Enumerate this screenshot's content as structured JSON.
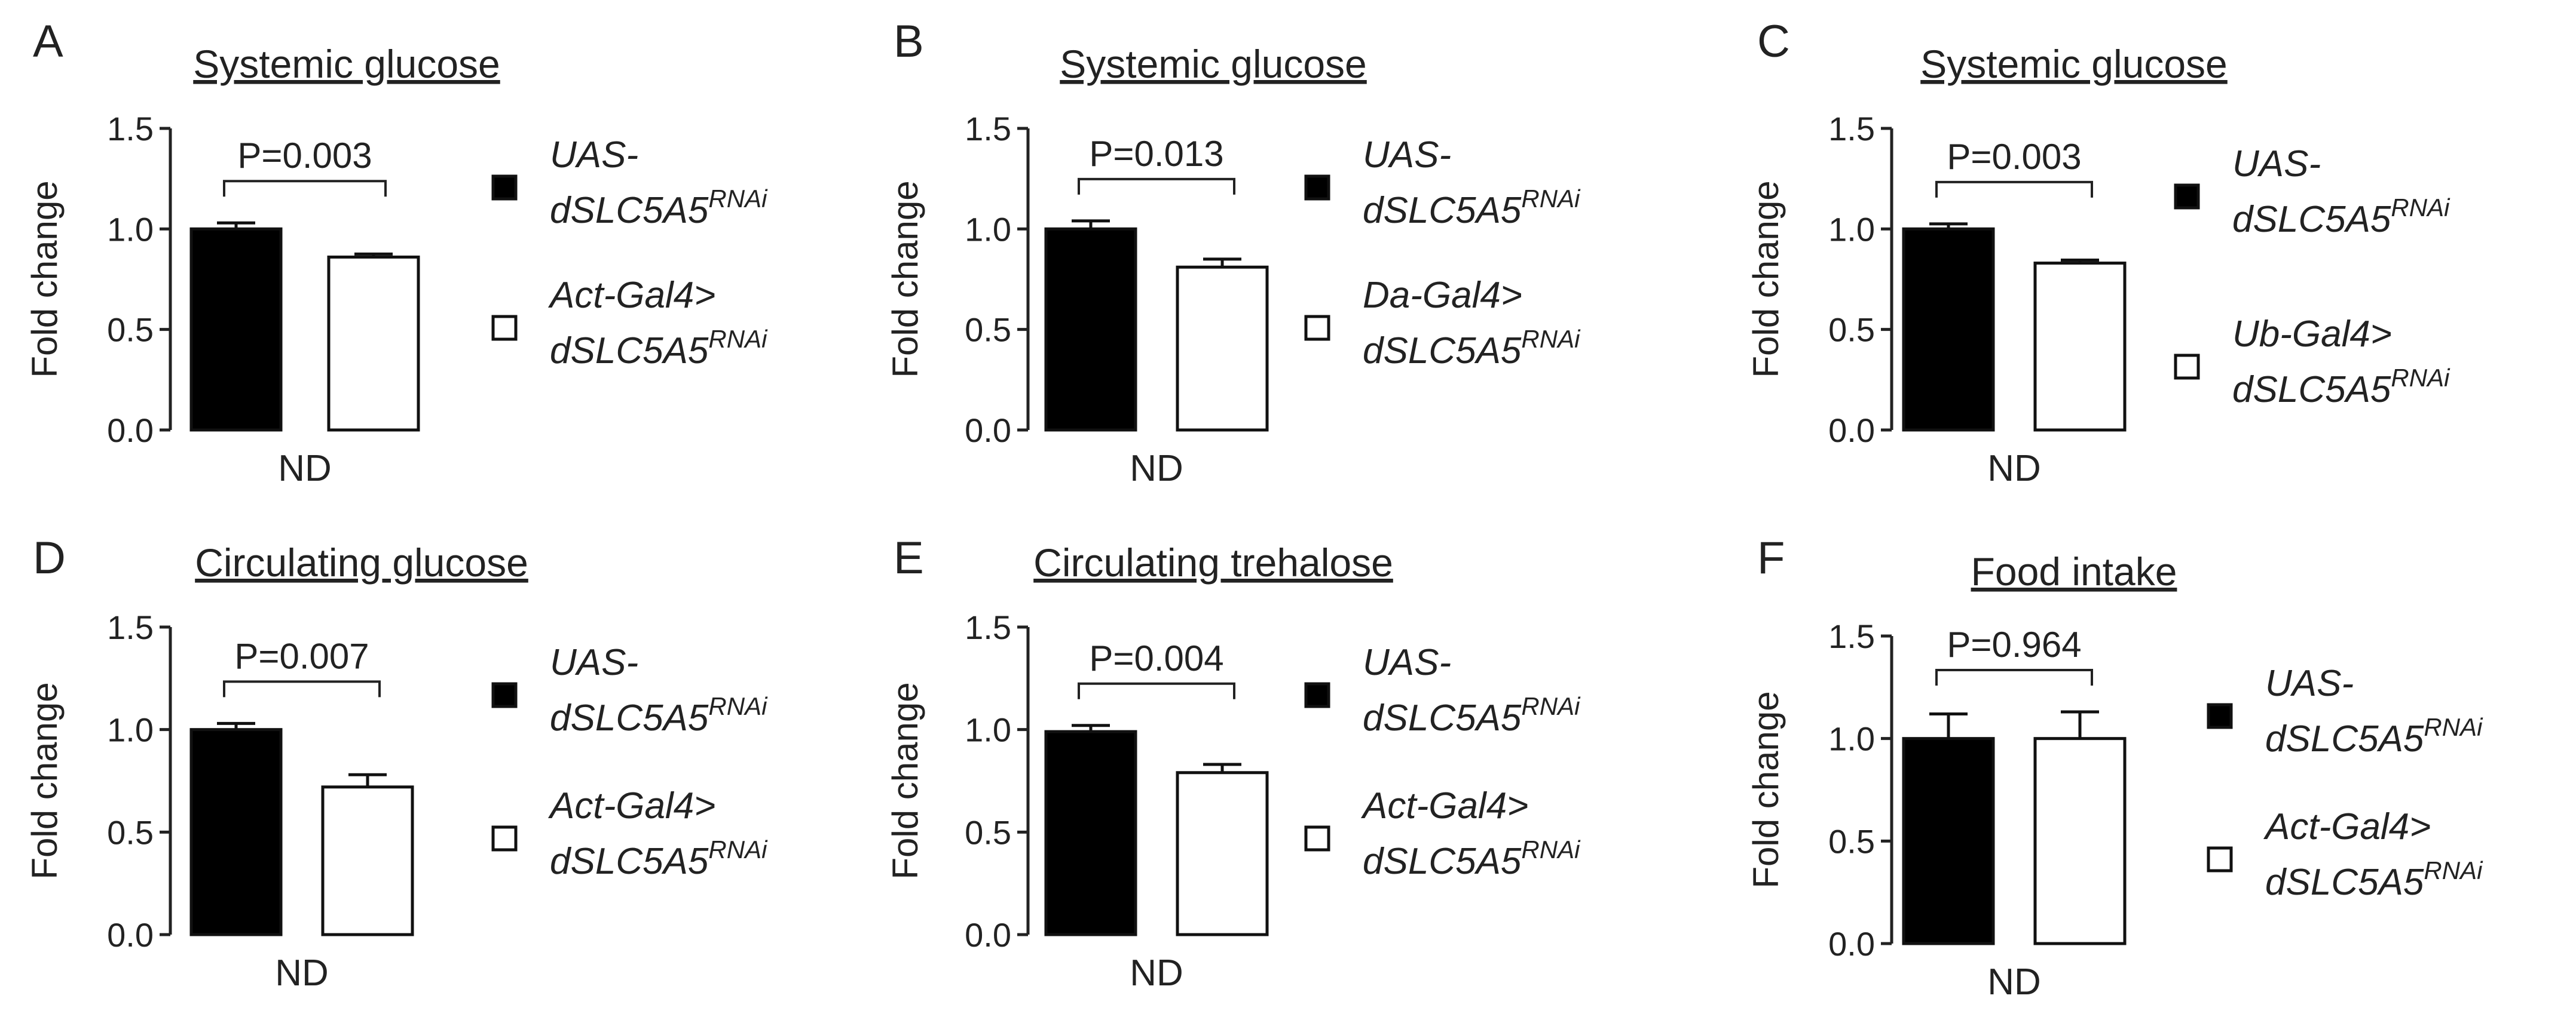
{
  "chart_data": [
    {
      "type": "bar",
      "panel": "A",
      "title": "Systemic glucose",
      "ylabel": "Fold change",
      "ylim": [
        0,
        1.5
      ],
      "yticks": [
        "0.0",
        "0.5",
        "1.0",
        "1.5"
      ],
      "categories": [
        "ND"
      ],
      "series": [
        {
          "name": "UAS-dSLC5A5RNAi",
          "legend_parts": [
            "UAS-",
            "dSLC5A5",
            "RNAi"
          ],
          "values": [
            1.0
          ],
          "error": [
            0.03
          ],
          "color": "#000000"
        },
        {
          "name": "Act-Gal4>dSLC5A5RNAi",
          "legend_parts": [
            "Act-Gal4>",
            "dSLC5A5",
            "RNAi"
          ],
          "values": [
            0.86
          ],
          "error": [
            0.015
          ],
          "color": "#ffffff"
        }
      ],
      "pvalue": "P=0.003"
    },
    {
      "type": "bar",
      "panel": "B",
      "title": "Systemic glucose",
      "ylabel": "Fold change",
      "ylim": [
        0,
        1.5
      ],
      "yticks": [
        "0.0",
        "0.5",
        "1.0",
        "1.5"
      ],
      "categories": [
        "ND"
      ],
      "series": [
        {
          "name": "UAS-dSLC5A5RNAi",
          "legend_parts": [
            "UAS-",
            "dSLC5A5",
            "RNAi"
          ],
          "values": [
            1.0
          ],
          "error": [
            0.04
          ],
          "color": "#000000"
        },
        {
          "name": "Da-Gal4>dSLC5A5RNAi",
          "legend_parts": [
            "Da-Gal4>",
            "dSLC5A5",
            "RNAi"
          ],
          "values": [
            0.81
          ],
          "error": [
            0.04
          ],
          "color": "#ffffff"
        }
      ],
      "pvalue": "P=0.013"
    },
    {
      "type": "bar",
      "panel": "C",
      "title": "Systemic glucose",
      "ylabel": "Fold change",
      "ylim": [
        0,
        1.5
      ],
      "yticks": [
        "0.0",
        "0.5",
        "1.0",
        "1.5"
      ],
      "categories": [
        "ND"
      ],
      "series": [
        {
          "name": "UAS-dSLC5A5RNAi",
          "legend_parts": [
            "UAS-",
            "dSLC5A5",
            "RNAi"
          ],
          "values": [
            1.0
          ],
          "error": [
            0.025
          ],
          "color": "#000000"
        },
        {
          "name": "Ub-Gal4>dSLC5A5RNAi",
          "legend_parts": [
            "Ub-Gal4>",
            "dSLC5A5",
            "RNAi"
          ],
          "values": [
            0.83
          ],
          "error": [
            0.015
          ],
          "color": "#ffffff"
        }
      ],
      "pvalue": "P=0.003"
    },
    {
      "type": "bar",
      "panel": "D",
      "title": "Circulating glucose",
      "ylabel": "Fold change",
      "ylim": [
        0,
        1.5
      ],
      "yticks": [
        "0.0",
        "0.5",
        "1.0",
        "1.5"
      ],
      "categories": [
        "ND"
      ],
      "series": [
        {
          "name": "UAS-dSLC5A5RNAi",
          "legend_parts": [
            "UAS-",
            "dSLC5A5",
            "RNAi"
          ],
          "values": [
            1.0
          ],
          "error": [
            0.03
          ],
          "color": "#000000"
        },
        {
          "name": "Act-Gal4>dSLC5A5RNAi",
          "legend_parts": [
            "Act-Gal4>",
            "dSLC5A5",
            "RNAi"
          ],
          "values": [
            0.72
          ],
          "error": [
            0.06
          ],
          "color": "#ffffff"
        }
      ],
      "pvalue": "P=0.007"
    },
    {
      "type": "bar",
      "panel": "E",
      "title": "Circulating trehalose",
      "ylabel": "Fold change",
      "ylim": [
        0,
        1.5
      ],
      "yticks": [
        "0.0",
        "0.5",
        "1.0",
        "1.5"
      ],
      "categories": [
        "ND"
      ],
      "series": [
        {
          "name": "UAS-dSLC5A5RNAi",
          "legend_parts": [
            "UAS-",
            "dSLC5A5",
            "RNAi"
          ],
          "values": [
            0.99
          ],
          "error": [
            0.03
          ],
          "color": "#000000"
        },
        {
          "name": "Act-Gal4>dSLC5A5RNAi",
          "legend_parts": [
            "Act-Gal4>",
            "dSLC5A5",
            "RNAi"
          ],
          "values": [
            0.79
          ],
          "error": [
            0.04
          ],
          "color": "#ffffff"
        }
      ],
      "pvalue": "P=0.004"
    },
    {
      "type": "bar",
      "panel": "F",
      "title": "Food intake",
      "ylabel": "Fold change",
      "ylim": [
        0,
        1.5
      ],
      "yticks": [
        "0.0",
        "0.5",
        "1.0",
        "1.5"
      ],
      "categories": [
        "ND"
      ],
      "series": [
        {
          "name": "UAS-dSLC5A5RNAi",
          "legend_parts": [
            "UAS-",
            "dSLC5A5",
            "RNAi"
          ],
          "values": [
            1.0
          ],
          "error": [
            0.12
          ],
          "color": "#000000"
        },
        {
          "name": "Act-Gal4>dSLC5A5RNAi",
          "legend_parts": [
            "Act-Gal4>",
            "dSLC5A5",
            "RNAi"
          ],
          "values": [
            1.0
          ],
          "error": [
            0.13
          ],
          "color": "#ffffff"
        }
      ],
      "pvalue": "P=0.964"
    }
  ]
}
